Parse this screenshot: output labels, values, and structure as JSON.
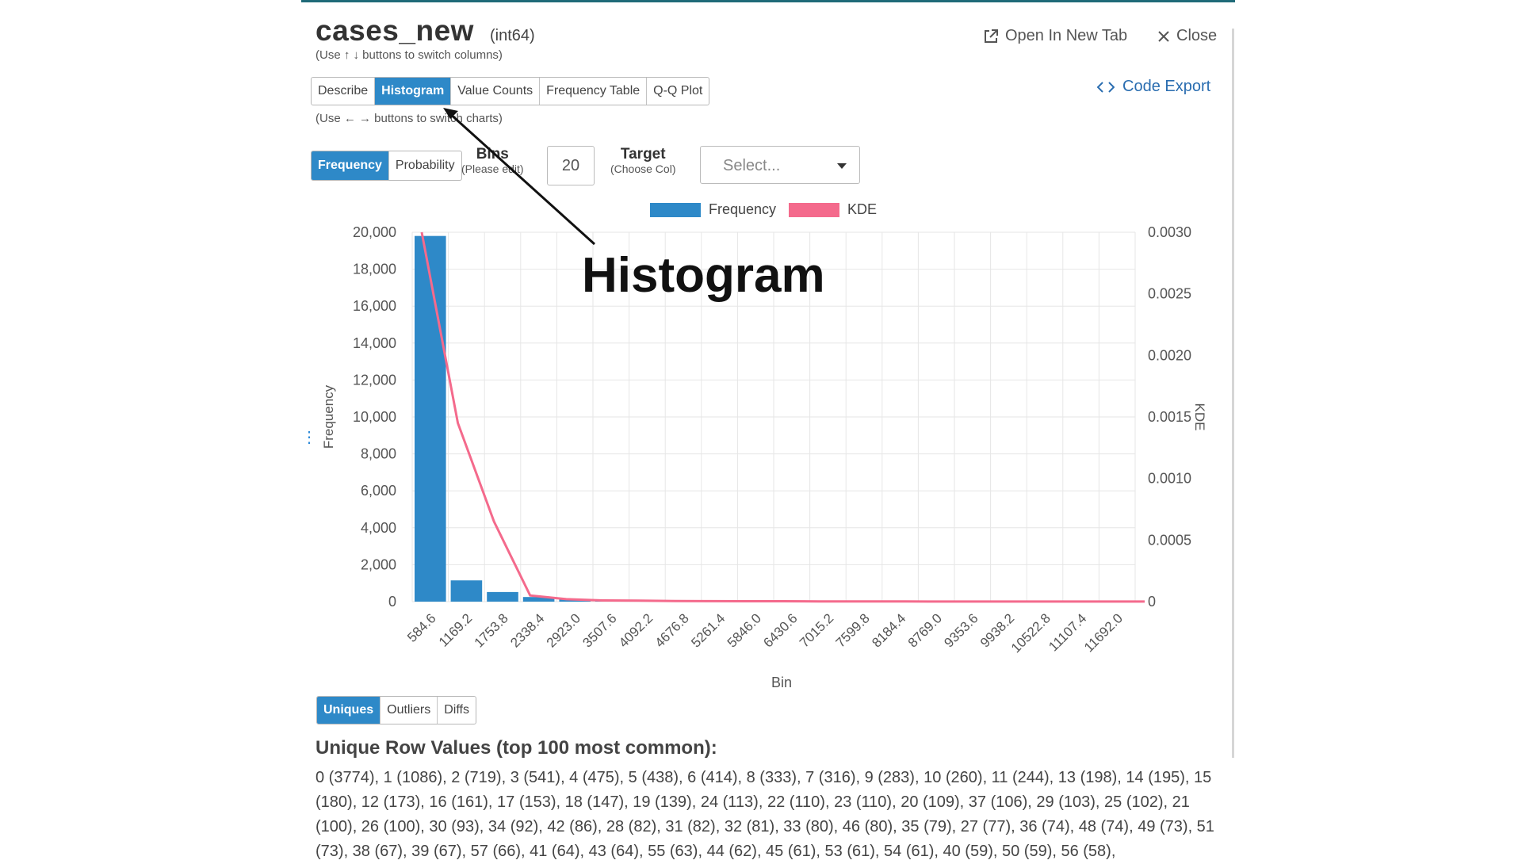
{
  "column": {
    "name": "cases_new",
    "dtype": "(int64)",
    "hint": "(Use ↑ ↓ buttons to switch columns)"
  },
  "toolbar": {
    "open_new_tab": "Open In New Tab",
    "close": "Close",
    "code_export": "Code Export"
  },
  "chart_tabs": [
    "Describe",
    "Histogram",
    "Value Counts",
    "Frequency Table",
    "Q-Q Plot"
  ],
  "chart_tabs_active": "Histogram",
  "chart_hint": "(Use ← → buttons to switch charts)",
  "mode_tabs": [
    "Frequency",
    "Probability"
  ],
  "bins": {
    "label": "Bins",
    "sublabel": "(Please edit)",
    "value": "20"
  },
  "target": {
    "label": "Target",
    "sublabel": "(Choose Col)",
    "placeholder": "Select..."
  },
  "annotation": "Histogram",
  "bottom_tabs": [
    "Uniques",
    "Outliers",
    "Diffs"
  ],
  "uniques": {
    "title": "Unique Row Values (top 100 most common):",
    "text": "0 (3774), 1 (1086), 2 (719), 3 (541), 4 (475), 5 (438), 6 (414), 8 (333), 7 (316), 9 (283), 10 (260), 11 (244), 13 (198), 14 (195), 15 (180), 12 (173), 16 (161), 17 (153), 18 (147), 19 (139), 24 (113), 22 (110), 23 (110), 20 (109), 37 (106), 29 (103), 25 (102), 21 (100), 26 (100), 30 (93), 34 (92), 42 (86), 28 (82), 31 (82), 32 (81), 33 (80), 46 (80), 35 (79), 27 (77), 36 (74), 48 (74), 49 (73), 51 (73), 38 (67), 39 (67), 57 (66), 41 (64), 43 (64), 55 (63), 44 (62), 45 (61), 53 (61), 54 (61), 40 (59), 50 (59), 56 (58),"
  },
  "colors": {
    "bar": "#2e89c8",
    "kde": "#f46a8c",
    "accent": "#2e89c8"
  },
  "chart_data": {
    "type": "bar",
    "title": "",
    "xlabel": "Bin",
    "ylabel": "Frequency",
    "y2label": "KDE",
    "legend": [
      "Frequency",
      "KDE"
    ],
    "categories": [
      "584.6",
      "1169.2",
      "1753.8",
      "2338.4",
      "2923.0",
      "3507.6",
      "4092.2",
      "4676.8",
      "5261.4",
      "5846.0",
      "6430.6",
      "7015.2",
      "7599.8",
      "8184.4",
      "8769.0",
      "9353.6",
      "9938.2",
      "10522.8",
      "11107.4",
      "11692.0"
    ],
    "values": [
      19800,
      1150,
      520,
      250,
      120,
      60,
      35,
      25,
      15,
      12,
      10,
      8,
      6,
      5,
      4,
      3,
      3,
      2,
      2,
      2
    ],
    "ylim": [
      0,
      20000
    ],
    "yticks": [
      "0",
      "2,000",
      "4,000",
      "6,000",
      "8,000",
      "10,000",
      "12,000",
      "14,000",
      "16,000",
      "18,000",
      "20,000"
    ],
    "y2lim": [
      0,
      0.003
    ],
    "y2ticks": [
      "0",
      "0.0005",
      "0.0010",
      "0.0015",
      "0.0020",
      "0.0025",
      "0.0030"
    ],
    "kde": [
      0.003,
      0.00145,
      0.00065,
      5e-05,
      2e-05,
      1e-05,
      8e-06,
      5e-06,
      4e-06,
      3e-06,
      3e-06,
      2e-06,
      2e-06,
      2e-06,
      1e-06,
      1e-06,
      1e-06,
      1e-06,
      1e-06,
      1e-06,
      1e-06
    ]
  }
}
